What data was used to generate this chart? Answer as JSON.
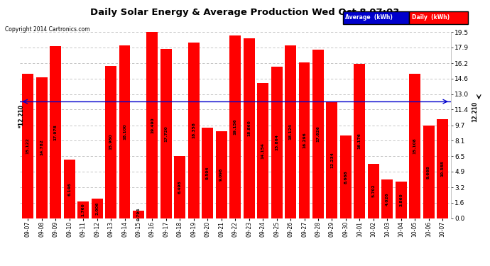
{
  "title": "Daily Solar Energy & Average Production Wed Oct 8 07:03",
  "copyright": "Copyright 2014 Cartronics.com",
  "average_value": 12.21,
  "categories": [
    "09-07",
    "09-08",
    "09-09",
    "09-10",
    "09-11",
    "09-12",
    "09-13",
    "09-14",
    "09-15",
    "09-16",
    "09-17",
    "09-18",
    "09-19",
    "09-20",
    "09-21",
    "09-22",
    "09-23",
    "09-24",
    "09-25",
    "09-26",
    "09-27",
    "09-28",
    "09-29",
    "09-30",
    "10-01",
    "10-02",
    "10-03",
    "10-04",
    "10-05",
    "10-06",
    "10-07"
  ],
  "values": [
    15.122,
    14.782,
    17.978,
    6.146,
    1.76,
    2.006,
    15.96,
    18.1,
    0.794,
    19.49,
    17.72,
    6.498,
    18.358,
    9.504,
    9.098,
    19.156,
    18.86,
    14.154,
    15.864,
    18.124,
    16.296,
    17.626,
    12.234,
    8.668,
    16.176,
    5.702,
    4.026,
    3.86,
    15.108,
    9.668,
    10.388
  ],
  "bar_color": "#ff0000",
  "line_color": "#0000cd",
  "yticks_right": [
    0.0,
    1.6,
    3.2,
    4.9,
    6.5,
    8.1,
    9.7,
    11.4,
    13.0,
    14.6,
    16.2,
    17.9,
    19.5
  ],
  "ylabel_right": [
    "0.0",
    "1.6",
    "3.2",
    "4.9",
    "6.5",
    "8.1",
    "9.7",
    "11.4",
    "13.0",
    "14.6",
    "16.2",
    "17.9",
    "19.5"
  ],
  "ylim": [
    0,
    19.5
  ],
  "bg_color": "#ffffff",
  "grid_color": "#bbbbbb",
  "legend_avg_color": "#0000cc",
  "legend_daily_color": "#ff0000",
  "legend_avg_text": "Average  (kWh)",
  "legend_daily_text": "Daily  (kWh)"
}
